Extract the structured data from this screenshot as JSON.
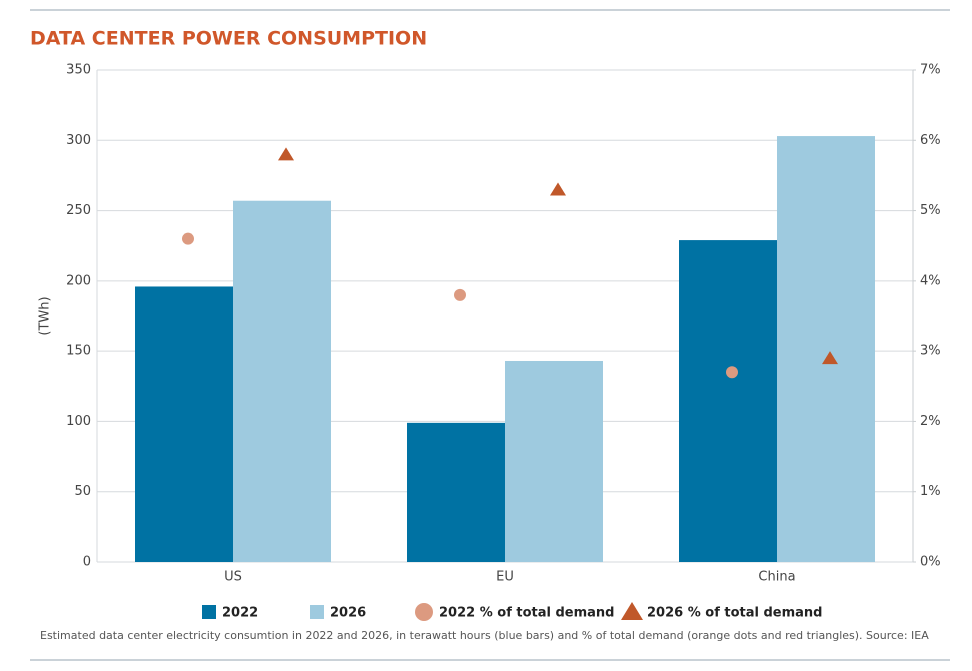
{
  "chart_data": {
    "type": "bar",
    "title": "DATA CENTER POWER CONSUMPTION",
    "y_label": "(TWh)",
    "caption": "Estimated data center electricity consumtion in 2022 and 2026, in terawatt hours (blue bars) and % of total demand (orange dots and red triangles). Source: IEA",
    "categories": [
      "US",
      "EU",
      "China"
    ],
    "series": [
      {
        "name": "2022",
        "color": "#0072a3",
        "values": [
          196,
          99,
          229
        ]
      },
      {
        "name": "2026",
        "color": "#9ecadf",
        "values": [
          257,
          143,
          303
        ]
      },
      {
        "name": "2022 % of total demand",
        "color": "#dc9a80",
        "marker": "circle",
        "axis": "y2",
        "values": [
          4.6,
          3.8,
          2.7
        ]
      },
      {
        "name": "2026 % of total demand",
        "color": "#c0582a",
        "marker": "triangle",
        "axis": "y2",
        "values": [
          5.8,
          5.3,
          2.9
        ]
      }
    ],
    "ylim": [
      0,
      350
    ],
    "yticks": [
      0,
      50,
      100,
      150,
      200,
      250,
      300,
      350
    ],
    "y2lim": [
      0,
      7
    ],
    "y2ticks": [
      {
        "value": 0,
        "label": "0%"
      },
      {
        "value": 1,
        "label": "1%"
      },
      {
        "value": 2,
        "label": "2%"
      },
      {
        "value": 3,
        "label": "3%"
      },
      {
        "value": 4,
        "label": "4%"
      },
      {
        "value": 5,
        "label": "5%"
      },
      {
        "value": 6,
        "label": "6%"
      },
      {
        "value": 7,
        "label": "7%"
      }
    ],
    "grid": true
  }
}
